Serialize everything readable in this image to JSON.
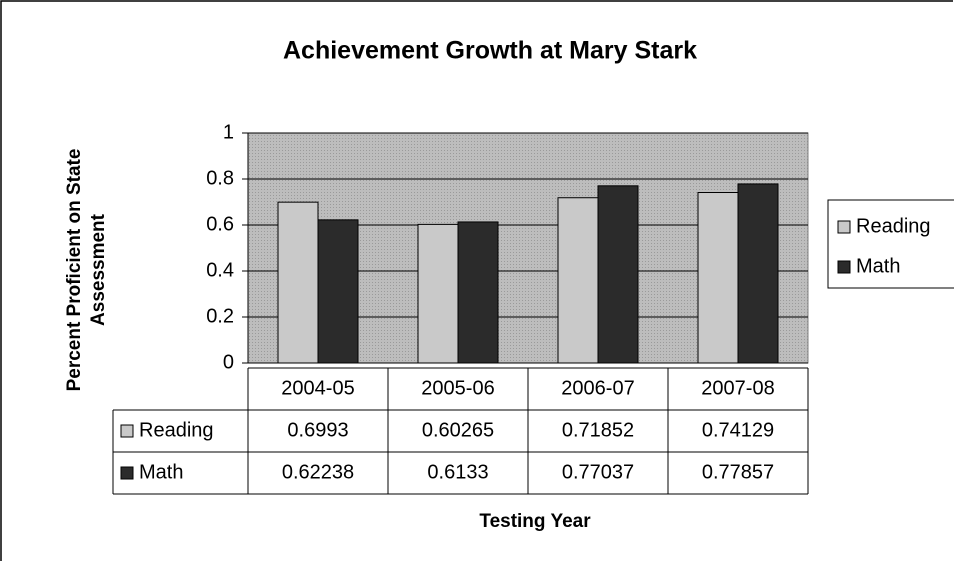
{
  "chart_data": {
    "type": "bar",
    "title": "Achievement Growth at Mary Stark",
    "y_label": [
      "Percent Proficient on State",
      "Assessment"
    ],
    "x_label": "Testing Year",
    "categories": [
      "2004-05",
      "2005-06",
      "2006-07",
      "2007-08"
    ],
    "series": [
      {
        "name": "Reading",
        "color": "#c9c9c9",
        "values": [
          0.6993,
          0.60265,
          0.71852,
          0.74129
        ]
      },
      {
        "name": "Math",
        "color": "#2b2b2b",
        "values": [
          0.62238,
          0.6133,
          0.77037,
          0.77857
        ]
      }
    ],
    "ylim": [
      0,
      1
    ],
    "yticks": [
      0,
      0.2,
      0.4,
      0.6,
      0.8,
      1
    ],
    "grid": true,
    "legend": "right"
  }
}
